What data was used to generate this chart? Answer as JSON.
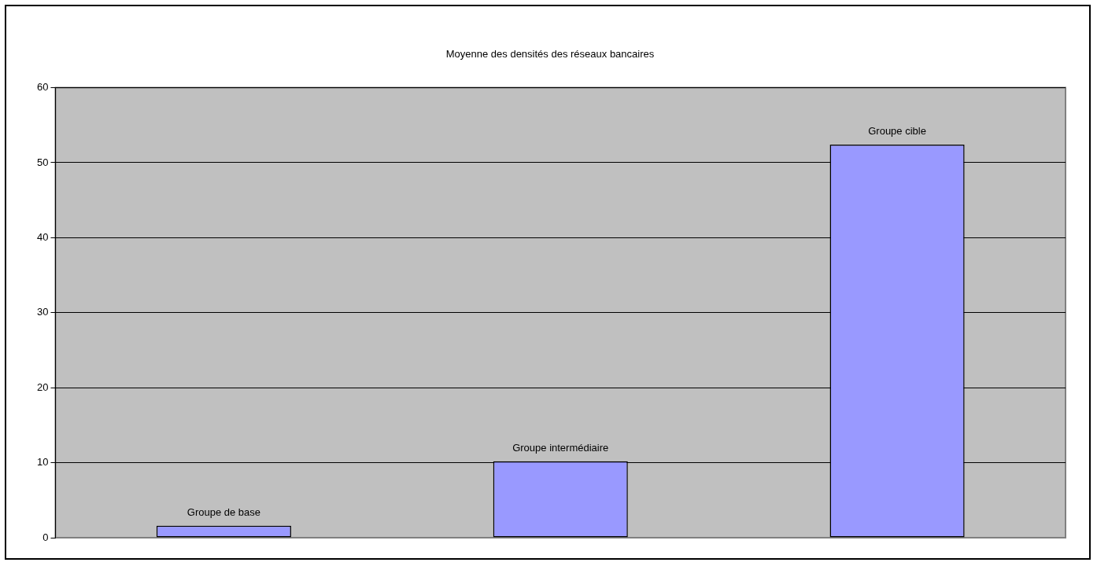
{
  "chart_data": {
    "type": "bar",
    "title": "Moyenne des densités des réseaux bancaires",
    "categories": [
      "Groupe de base",
      "Groupe intermédiaire",
      "Groupe cible"
    ],
    "values": [
      1.6,
      10.2,
      52.4
    ],
    "color": "#9999ff",
    "ylim": [
      0,
      60
    ],
    "yticks": [
      0,
      10,
      20,
      30,
      40,
      50,
      60
    ],
    "grid": "y",
    "tick_labels": "y"
  }
}
